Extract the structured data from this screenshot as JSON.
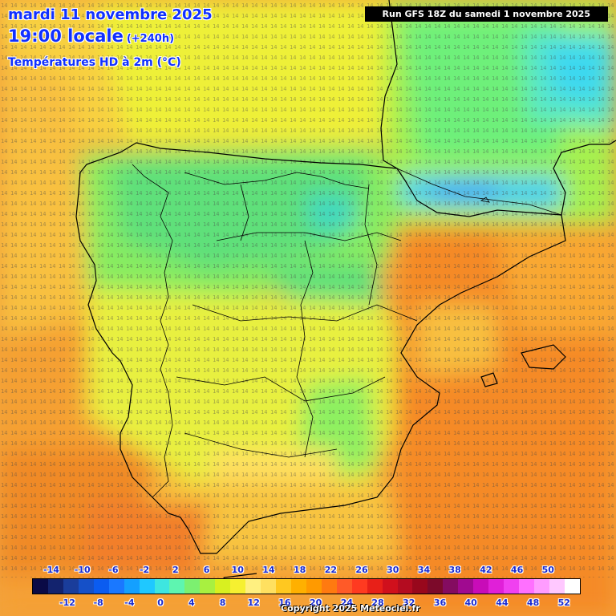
{
  "header": {
    "date": "mardi 11 novembre 2025",
    "time": "19:00 locale",
    "lead": "(+240h)",
    "parameter": "Températures HD à 2m (°C)",
    "run": "Run GFS 18Z du samedi 1 novembre 2025"
  },
  "legend": {
    "labels_top": [
      "-14",
      "-10",
      "-6",
      "-2",
      "2",
      "6",
      "10",
      "14",
      "18",
      "22",
      "26",
      "30",
      "34",
      "38",
      "42",
      "46",
      "50"
    ],
    "labels_bottom": [
      "-12",
      "-8",
      "-4",
      "0",
      "4",
      "8",
      "12",
      "16",
      "20",
      "24",
      "28",
      "32",
      "36",
      "40",
      "44",
      "48",
      "52"
    ],
    "colors": [
      "#0a0a46",
      "#13236e",
      "#1a3d9b",
      "#1550c8",
      "#0b5cf0",
      "#1a78ff",
      "#14a0ff",
      "#1fc8ff",
      "#3ee6e0",
      "#5ef5b0",
      "#7cf070",
      "#a8f040",
      "#d8f020",
      "#f6f030",
      "#fff080",
      "#ffe060",
      "#ffc820",
      "#ffb000",
      "#ff9a00",
      "#ff7a10",
      "#ff5a28",
      "#ff3a20",
      "#e82018",
      "#d0101c",
      "#b40c20",
      "#98081c",
      "#7c0a2a",
      "#840c60",
      "#a00a90",
      "#c80cb8",
      "#e020d8",
      "#f040f0",
      "#ff70ff",
      "#ff9cff",
      "#ffc8ff",
      "#ffffff"
    ]
  },
  "copyright": "Copyright 2025 Meteociel.fr"
}
